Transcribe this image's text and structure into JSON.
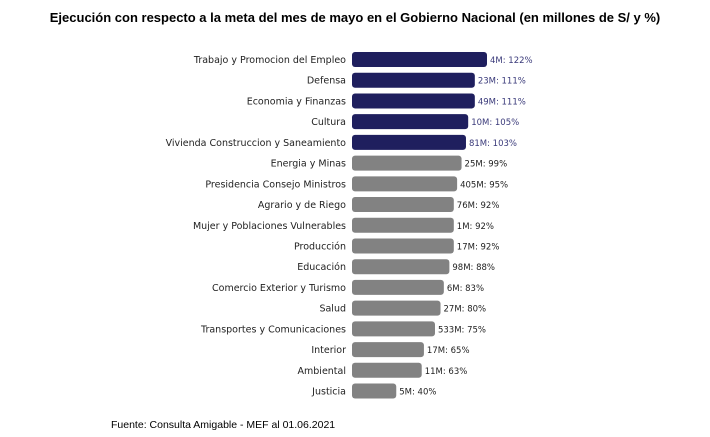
{
  "title": "Ejecución con respecto a la meta del mes de mayo en el Gobierno Nacional (en millones de S/ y %)",
  "source": "Fuente: Consulta Amigable - MEF al 01.06.2021",
  "colors": {
    "highlight": "#1f1f5e",
    "default": "#828282",
    "highlight_label": "#3a3a7a",
    "default_label": "#222222"
  },
  "chart_data": {
    "type": "bar",
    "orientation": "horizontal",
    "title": "Ejecución con respecto a la meta del mes de mayo en el Gobierno Nacional (en millones de S/ y %)",
    "xlabel": "",
    "ylabel": "",
    "xlim": [
      0,
      122
    ],
    "grid": false,
    "legend": "none",
    "categories": [
      "Trabajo y Promocion del Empleo",
      "Defensa",
      "Economia y Finanzas",
      "Cultura",
      "Vivienda Construccion y Saneamiento",
      "Energia y Minas",
      "Presidencia Consejo Ministros",
      "Agrario y de Riego",
      "Mujer y Poblaciones Vulnerables",
      "Producción",
      "Educación",
      "Comercio Exterior y Turismo",
      "Salud",
      "Transportes y Comunicaciones",
      "Interior",
      "Ambiental",
      "Justicia"
    ],
    "values": [
      122,
      111,
      111,
      105,
      103,
      99,
      95,
      92,
      92,
      92,
      88,
      83,
      80,
      75,
      65,
      63,
      40
    ],
    "data_labels": [
      "4M: 122%",
      "23M: 111%",
      "49M: 111%",
      "10M: 105%",
      "81M: 103%",
      "25M: 99%",
      "405M: 95%",
      "76M: 92%",
      "1M: 92%",
      "17M: 92%",
      "98M: 88%",
      "6M: 83%",
      "27M: 80%",
      "533M: 75%",
      "17M: 65%",
      "11M: 63%",
      "5M: 40%"
    ],
    "highlight_threshold": 100
  }
}
